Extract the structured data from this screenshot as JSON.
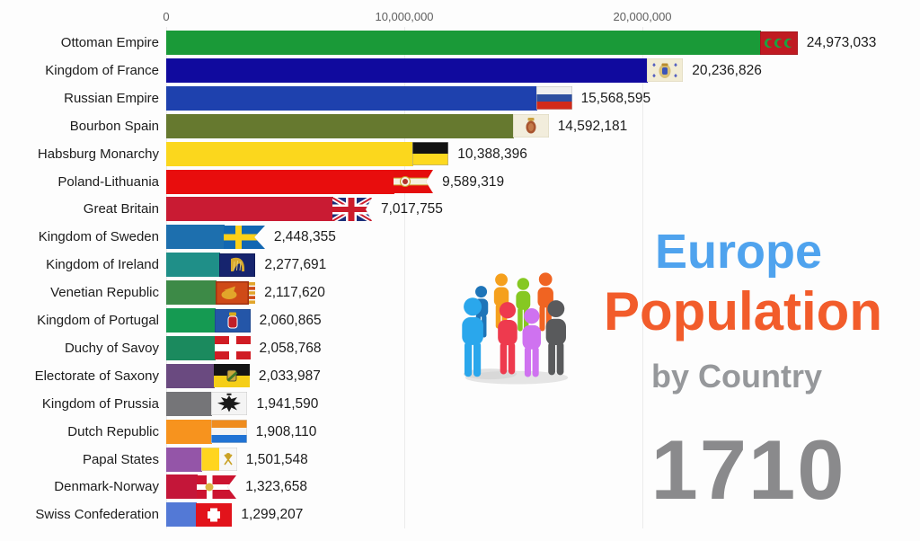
{
  "chart_data": {
    "type": "bar",
    "orientation": "horizontal",
    "title": "Europe Population by Country",
    "year": "1710",
    "categories": [
      "Ottoman Empire",
      "Kingdom of France",
      "Russian Empire",
      "Bourbon Spain",
      "Habsburg Monarchy",
      "Poland-Lithuania",
      "Great Britain",
      "Kingdom of Sweden",
      "Kingdom of Ireland",
      "Venetian Republic",
      "Kingdom of Portugal",
      "Duchy of Savoy",
      "Electorate of Saxony",
      "Kingdom of Prussia",
      "Dutch Republic",
      "Papal States",
      "Denmark-Norway",
      "Swiss Confederation"
    ],
    "values": [
      24973033,
      20236826,
      15568595,
      14592181,
      10388396,
      9589319,
      7017755,
      2448355,
      2277691,
      2117620,
      2060865,
      2058768,
      2033987,
      1941590,
      1908110,
      1501548,
      1323658,
      1299207
    ],
    "value_labels": [
      "24,973,033",
      "20,236,826",
      "15,568,595",
      "14,592,181",
      "10,388,396",
      "9,589,319",
      "7,017,755",
      "2,448,355",
      "2,277,691",
      "2,117,620",
      "2,060,865",
      "2,058,768",
      "2,033,987",
      "1,941,590",
      "1,908,110",
      "1,501,548",
      "1,323,658",
      "1,299,207"
    ],
    "xlim": [
      0,
      31600000
    ],
    "x_ticks": [
      {
        "value": 0,
        "label": "0"
      },
      {
        "value": 10000000,
        "label": "10,000,000"
      },
      {
        "value": 20000000,
        "label": "20,000,000"
      }
    ],
    "grid": true,
    "legend": false
  },
  "rows": [
    {
      "label": "Ottoman Empire",
      "value": 24973033,
      "value_label": "24,973,033",
      "color": "#1a9a38",
      "flag": "ottoman"
    },
    {
      "label": "Kingdom of France",
      "value": 20236826,
      "value_label": "20,236,826",
      "color": "#100a9e",
      "flag": "france"
    },
    {
      "label": "Russian Empire",
      "value": 15568595,
      "value_label": "15,568,595",
      "color": "#1e41ae",
      "flag": "russia"
    },
    {
      "label": "Bourbon Spain",
      "value": 14592181,
      "value_label": "14,592,181",
      "color": "#66792f",
      "flag": "spain"
    },
    {
      "label": "Habsburg Monarchy",
      "value": 10388396,
      "value_label": "10,388,396",
      "color": "#fbd71d",
      "flag": "habsburg"
    },
    {
      "label": "Poland-Lithuania",
      "value": 9589319,
      "value_label": "9,589,319",
      "color": "#e80d0d",
      "flag": "poland"
    },
    {
      "label": "Great Britain",
      "value": 7017755,
      "value_label": "7,017,755",
      "color": "#c91b33",
      "flag": "greatbritain"
    },
    {
      "label": "Kingdom of Sweden",
      "value": 2448355,
      "value_label": "2,448,355",
      "color": "#1d6fae",
      "flag": "sweden"
    },
    {
      "label": "Kingdom of Ireland",
      "value": 2277691,
      "value_label": "2,277,691",
      "color": "#1f8f88",
      "flag": "ireland"
    },
    {
      "label": "Venetian Republic",
      "value": 2117620,
      "value_label": "2,117,620",
      "color": "#3d8a47",
      "flag": "venice"
    },
    {
      "label": "Kingdom of Portugal",
      "value": 2060865,
      "value_label": "2,060,865",
      "color": "#159a52",
      "flag": "portugal"
    },
    {
      "label": "Duchy of Savoy",
      "value": 2058768,
      "value_label": "2,058,768",
      "color": "#1b8a5e",
      "flag": "savoy"
    },
    {
      "label": "Electorate of Saxony",
      "value": 2033987,
      "value_label": "2,033,987",
      "color": "#6a4a80",
      "flag": "saxony"
    },
    {
      "label": "Kingdom of Prussia",
      "value": 1941590,
      "value_label": "1,941,590",
      "color": "#757578",
      "flag": "prussia"
    },
    {
      "label": "Dutch Republic",
      "value": 1908110,
      "value_label": "1,908,110",
      "color": "#f7931e",
      "flag": "dutch"
    },
    {
      "label": "Papal States",
      "value": 1501548,
      "value_label": "1,501,548",
      "color": "#9455a8",
      "flag": "papal"
    },
    {
      "label": "Denmark-Norway",
      "value": 1323658,
      "value_label": "1,323,658",
      "color": "#c41639",
      "flag": "denmark"
    },
    {
      "label": "Swiss Confederation",
      "value": 1299207,
      "value_label": "1,299,207",
      "color": "#5379d6",
      "flag": "swiss"
    }
  ],
  "title": {
    "line1": "Europe",
    "line2": "Population",
    "line3": "by Country",
    "line1_color": "#4fa3ee",
    "line2_color": "#f25c2b",
    "line3_color": "#96989b"
  },
  "year": {
    "text": "1710",
    "color": "#8a8a8c"
  },
  "icons": {
    "people_group_colors": [
      "#1e74b8",
      "#f5a01d",
      "#86c822",
      "#f06422",
      "#2aa7ec",
      "#ee3a4e",
      "#cf72f0",
      "#595a5c"
    ]
  }
}
